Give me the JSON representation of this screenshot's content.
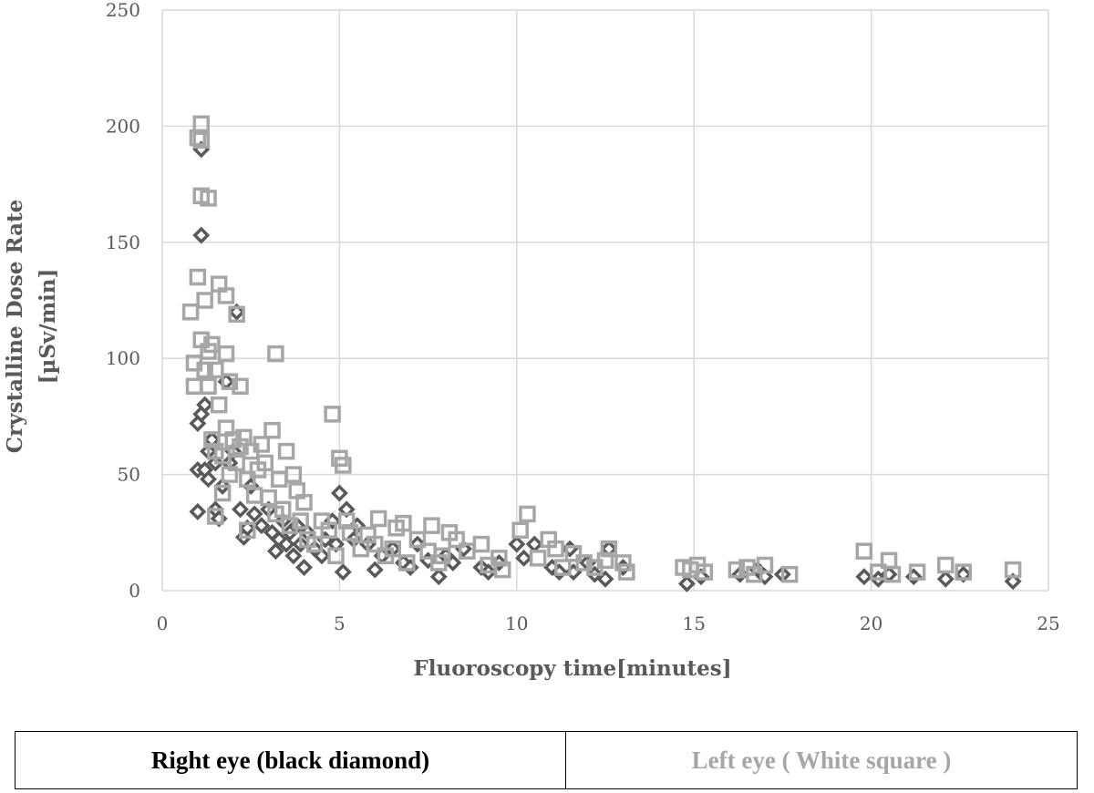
{
  "chart_data": {
    "type": "scatter",
    "title": "",
    "xlabel": "Fluoroscopy time[minutes]",
    "ylabel_line1": "Crystalline Dose Rate",
    "ylabel_line2": "[µSv/min]",
    "xlim": [
      0,
      25
    ],
    "ylim": [
      0,
      250
    ],
    "x_ticks": [
      "0",
      "5",
      "10",
      "15",
      "20",
      "25"
    ],
    "y_ticks": [
      "0",
      "50",
      "100",
      "150",
      "200",
      "250"
    ],
    "grid": true,
    "legend": {
      "placement": "bottom",
      "right_label": "Right eye (black  diamond)",
      "left_label": "Left eye ( White square  )"
    },
    "colors": {
      "right": "#595959",
      "left": "#a6a6a6",
      "grid": "#d9d9d9",
      "text": "#595959"
    },
    "series": [
      {
        "name": "Right eye",
        "marker": "diamond",
        "points": [
          [
            1.0,
            34
          ],
          [
            1.0,
            52
          ],
          [
            1.0,
            72
          ],
          [
            1.1,
            76
          ],
          [
            1.1,
            190
          ],
          [
            1.1,
            153
          ],
          [
            1.2,
            52
          ],
          [
            1.2,
            80
          ],
          [
            1.3,
            48
          ],
          [
            1.3,
            60
          ],
          [
            1.4,
            65
          ],
          [
            1.5,
            35
          ],
          [
            1.5,
            55
          ],
          [
            1.6,
            31
          ],
          [
            1.7,
            45
          ],
          [
            1.8,
            90
          ],
          [
            1.9,
            55
          ],
          [
            2.0,
            60
          ],
          [
            2.1,
            120
          ],
          [
            2.2,
            35
          ],
          [
            2.3,
            23
          ],
          [
            2.4,
            27
          ],
          [
            2.5,
            45
          ],
          [
            2.6,
            33
          ],
          [
            2.8,
            28
          ],
          [
            3.0,
            35
          ],
          [
            3.1,
            25
          ],
          [
            3.2,
            17
          ],
          [
            3.3,
            22
          ],
          [
            3.4,
            30
          ],
          [
            3.5,
            20
          ],
          [
            3.6,
            25
          ],
          [
            3.7,
            15
          ],
          [
            3.8,
            28
          ],
          [
            3.9,
            20
          ],
          [
            4.0,
            10
          ],
          [
            4.1,
            25
          ],
          [
            4.3,
            18
          ],
          [
            4.5,
            15
          ],
          [
            4.6,
            22
          ],
          [
            4.8,
            30
          ],
          [
            4.9,
            20
          ],
          [
            5.0,
            42
          ],
          [
            5.1,
            8
          ],
          [
            5.2,
            35
          ],
          [
            5.4,
            22
          ],
          [
            5.5,
            28
          ],
          [
            5.8,
            20
          ],
          [
            6.0,
            9
          ],
          [
            6.2,
            15
          ],
          [
            6.5,
            18
          ],
          [
            6.8,
            12
          ],
          [
            7.0,
            10
          ],
          [
            7.2,
            20
          ],
          [
            7.5,
            13
          ],
          [
            7.8,
            6
          ],
          [
            8.0,
            15
          ],
          [
            8.2,
            12
          ],
          [
            8.5,
            18
          ],
          [
            9.0,
            10
          ],
          [
            9.2,
            8
          ],
          [
            9.5,
            12
          ],
          [
            10.0,
            20
          ],
          [
            10.2,
            14
          ],
          [
            10.5,
            20
          ],
          [
            11.0,
            10
          ],
          [
            11.2,
            8
          ],
          [
            11.5,
            18
          ],
          [
            11.6,
            8
          ],
          [
            12.0,
            12
          ],
          [
            12.2,
            7
          ],
          [
            12.5,
            5
          ],
          [
            12.6,
            18
          ],
          [
            13.0,
            10
          ],
          [
            14.8,
            3
          ],
          [
            15.2,
            6
          ],
          [
            16.3,
            7
          ],
          [
            16.8,
            9
          ],
          [
            17.0,
            6
          ],
          [
            17.5,
            7
          ],
          [
            19.8,
            6
          ],
          [
            20.2,
            5
          ],
          [
            20.5,
            7
          ],
          [
            21.2,
            6
          ],
          [
            22.1,
            5
          ],
          [
            22.6,
            7
          ],
          [
            24.0,
            4
          ]
        ]
      },
      {
        "name": "Left eye",
        "marker": "square",
        "points": [
          [
            0.8,
            120
          ],
          [
            0.9,
            98
          ],
          [
            0.9,
            88
          ],
          [
            1.0,
            195
          ],
          [
            1.0,
            135
          ],
          [
            1.1,
            201
          ],
          [
            1.1,
            194
          ],
          [
            1.1,
            170
          ],
          [
            1.1,
            108
          ],
          [
            1.2,
            125
          ],
          [
            1.2,
            95
          ],
          [
            1.3,
            169
          ],
          [
            1.3,
            103
          ],
          [
            1.3,
            88
          ],
          [
            1.4,
            106
          ],
          [
            1.4,
            65
          ],
          [
            1.5,
            95
          ],
          [
            1.5,
            60
          ],
          [
            1.5,
            32
          ],
          [
            1.6,
            132
          ],
          [
            1.6,
            80
          ],
          [
            1.7,
            42
          ],
          [
            1.7,
            58
          ],
          [
            1.8,
            127
          ],
          [
            1.8,
            102
          ],
          [
            1.8,
            70
          ],
          [
            1.9,
            90
          ],
          [
            1.9,
            50
          ],
          [
            2.0,
            65
          ],
          [
            2.1,
            119
          ],
          [
            2.1,
            55
          ],
          [
            2.2,
            88
          ],
          [
            2.2,
            62
          ],
          [
            2.3,
            66
          ],
          [
            2.4,
            48
          ],
          [
            2.4,
            26
          ],
          [
            2.5,
            60
          ],
          [
            2.6,
            41
          ],
          [
            2.7,
            52
          ],
          [
            2.8,
            63
          ],
          [
            2.9,
            55
          ],
          [
            3.0,
            40
          ],
          [
            3.1,
            69
          ],
          [
            3.2,
            102
          ],
          [
            3.2,
            33
          ],
          [
            3.3,
            48
          ],
          [
            3.4,
            35
          ],
          [
            3.5,
            60
          ],
          [
            3.6,
            28
          ],
          [
            3.7,
            50
          ],
          [
            3.8,
            43
          ],
          [
            3.9,
            30
          ],
          [
            4.0,
            38
          ],
          [
            4.1,
            22
          ],
          [
            4.3,
            20
          ],
          [
            4.5,
            30
          ],
          [
            4.7,
            26
          ],
          [
            4.8,
            76
          ],
          [
            4.9,
            15
          ],
          [
            5.0,
            57
          ],
          [
            5.1,
            54
          ],
          [
            5.2,
            30
          ],
          [
            5.3,
            25
          ],
          [
            5.6,
            18
          ],
          [
            5.8,
            24
          ],
          [
            6.0,
            20
          ],
          [
            6.1,
            31
          ],
          [
            6.3,
            15
          ],
          [
            6.5,
            18
          ],
          [
            6.6,
            27
          ],
          [
            6.8,
            29
          ],
          [
            6.9,
            12
          ],
          [
            7.2,
            22
          ],
          [
            7.5,
            17
          ],
          [
            7.6,
            28
          ],
          [
            7.8,
            12
          ],
          [
            7.9,
            15
          ],
          [
            8.1,
            25
          ],
          [
            8.3,
            22
          ],
          [
            8.6,
            17
          ],
          [
            9.0,
            20
          ],
          [
            9.2,
            11
          ],
          [
            9.5,
            14
          ],
          [
            9.6,
            9
          ],
          [
            10.1,
            26
          ],
          [
            10.3,
            33
          ],
          [
            10.6,
            14
          ],
          [
            10.9,
            22
          ],
          [
            11.1,
            18
          ],
          [
            11.3,
            10
          ],
          [
            11.6,
            16
          ],
          [
            11.9,
            12
          ],
          [
            12.2,
            10
          ],
          [
            12.5,
            13
          ],
          [
            12.6,
            18
          ],
          [
            13.0,
            12
          ],
          [
            13.1,
            8
          ],
          [
            14.7,
            10
          ],
          [
            14.9,
            9
          ],
          [
            15.1,
            11
          ],
          [
            15.3,
            8
          ],
          [
            16.2,
            9
          ],
          [
            16.5,
            10
          ],
          [
            16.7,
            7
          ],
          [
            17.0,
            11
          ],
          [
            17.7,
            7
          ],
          [
            19.8,
            17
          ],
          [
            20.2,
            8
          ],
          [
            20.5,
            13
          ],
          [
            20.6,
            7
          ],
          [
            21.3,
            8
          ],
          [
            22.1,
            11
          ],
          [
            22.6,
            8
          ],
          [
            24.0,
            9
          ]
        ]
      }
    ]
  }
}
